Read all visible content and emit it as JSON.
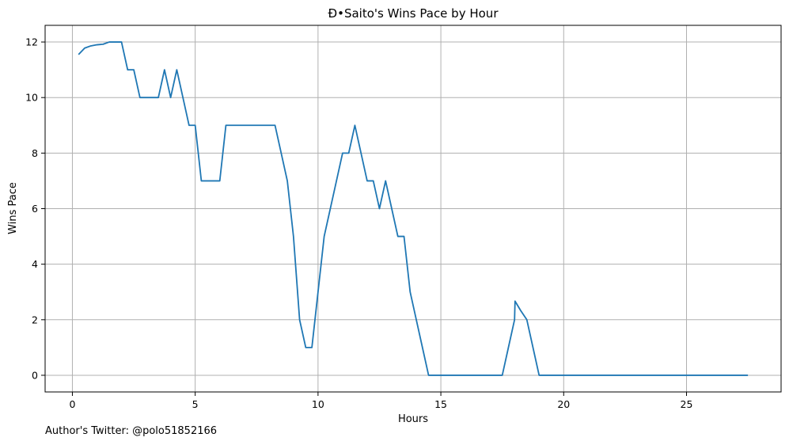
{
  "chart_data": {
    "type": "line",
    "title": "Đ•Saito's Wins Pace by Hour",
    "xlabel": "Hours",
    "ylabel": "Wins Pace",
    "xlim": [
      -1.11,
      28.85
    ],
    "ylim": [
      -0.6,
      12.6
    ],
    "xticks": [
      0,
      5,
      10,
      15,
      20,
      25
    ],
    "yticks": [
      0,
      2,
      4,
      6,
      8,
      10,
      12
    ],
    "grid": true,
    "line_color": "#1f77b4",
    "series": [
      {
        "x": [
          0.25,
          0.5,
          0.75,
          1.0,
          1.25,
          1.5,
          1.75,
          2.0,
          2.25,
          2.5,
          2.75,
          3.0,
          3.25,
          3.5,
          3.75,
          4.0,
          4.25,
          4.5,
          4.75,
          5.0,
          5.25,
          5.5,
          5.75,
          6.0,
          6.25,
          6.5,
          6.75,
          7.0,
          7.25,
          7.5,
          7.75,
          8.0,
          8.25,
          8.5,
          8.75,
          9.0,
          9.25,
          9.5,
          9.75,
          10.0,
          10.25,
          10.5,
          10.75,
          11.0,
          11.25,
          11.5,
          11.75,
          12.0,
          12.25,
          12.5,
          12.75,
          13.0,
          13.25,
          13.5,
          13.75,
          14.0,
          14.25,
          14.5,
          14.75,
          15.0,
          15.25,
          15.5,
          15.75,
          16.0,
          16.25,
          16.5,
          16.75,
          17.0,
          17.25,
          17.5,
          17.75,
          18.0,
          18.02,
          18.25,
          18.5,
          18.75,
          19.0,
          27.5
        ],
        "values": [
          11.55,
          11.78,
          11.86,
          11.9,
          11.92,
          12.0,
          12.0,
          12.0,
          11.0,
          11.0,
          10.0,
          10.0,
          10.0,
          10.0,
          11.0,
          10.0,
          11.0,
          10.0,
          9.0,
          9.0,
          7.0,
          7.0,
          7.0,
          7.0,
          9.0,
          9.0,
          9.0,
          9.0,
          9.0,
          9.0,
          9.0,
          9.0,
          9.0,
          8.0,
          7.0,
          5.0,
          2.0,
          1.0,
          1.0,
          3.0,
          5.0,
          6.0,
          7.0,
          8.0,
          8.0,
          9.0,
          8.0,
          7.0,
          7.0,
          6.0,
          7.0,
          6.0,
          5.0,
          5.0,
          3.0,
          2.0,
          1.0,
          0.0,
          0.0,
          0.0,
          0.0,
          0.0,
          0.0,
          0.0,
          0.0,
          0.0,
          0.0,
          0.0,
          0.0,
          0.0,
          1.0,
          2.0,
          2.67,
          2.33,
          2.0,
          1.0,
          0.0,
          0.0
        ]
      }
    ]
  },
  "footer": {
    "credit": "Author's Twitter: @polo51852166"
  }
}
